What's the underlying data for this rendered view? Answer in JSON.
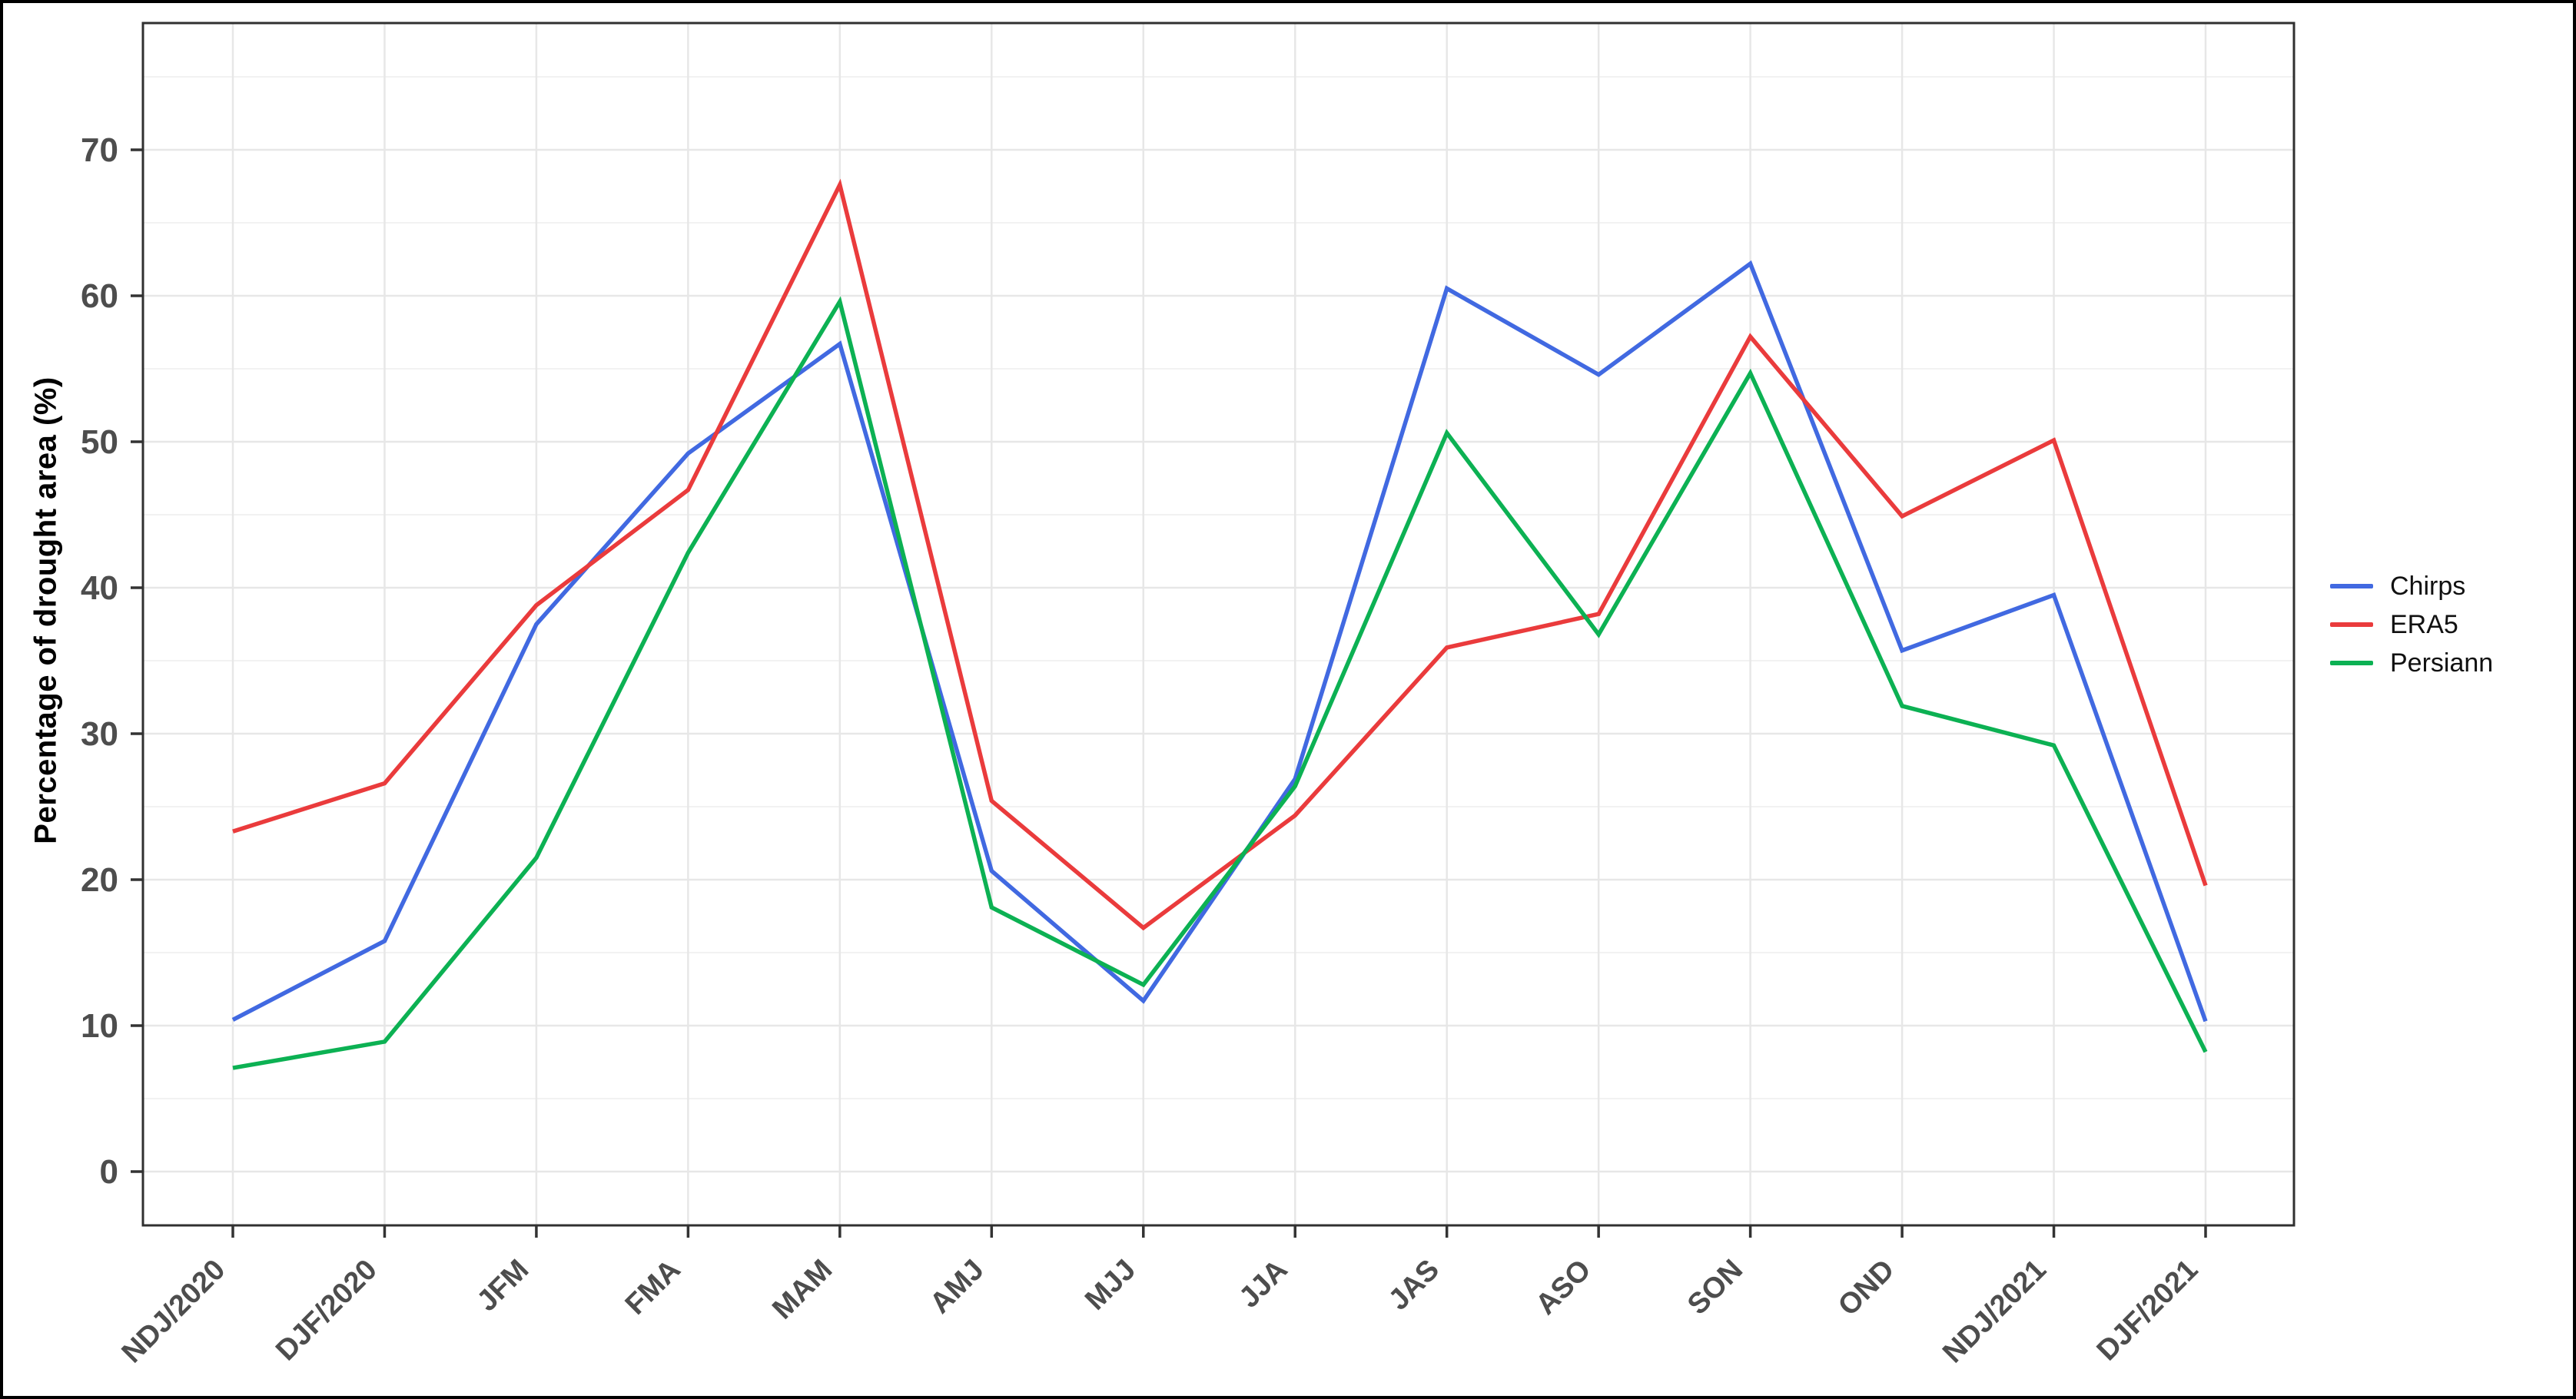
{
  "chart_data": {
    "type": "line",
    "title": "",
    "xlabel": "",
    "ylabel": "Percentage of drought area (%)",
    "categories": [
      "NDJ/2020",
      "DJF/2020",
      "JFM",
      "FMA",
      "MAM",
      "AMJ",
      "MJJ",
      "JJA",
      "JAS",
      "ASO",
      "SON",
      "OND",
      "NDJ/2021",
      "DJF/2021"
    ],
    "series": [
      {
        "name": "Chirps",
        "color": "#4169E1",
        "values": [
          10.4,
          15.8,
          37.5,
          49.2,
          56.7,
          20.6,
          11.7,
          26.9,
          60.5,
          54.6,
          62.2,
          35.7,
          39.5,
          10.3
        ]
      },
      {
        "name": "ERA5",
        "color": "#EA3B3C",
        "values": [
          23.3,
          26.6,
          38.8,
          46.7,
          67.6,
          25.4,
          16.7,
          24.4,
          35.9,
          38.2,
          57.2,
          44.9,
          50.1,
          19.6
        ]
      },
      {
        "name": "Persiann",
        "color": "#0CB153",
        "values": [
          7.1,
          8.9,
          21.5,
          42.4,
          59.6,
          18.1,
          12.8,
          26.4,
          50.6,
          36.8,
          54.7,
          31.9,
          29.2,
          8.2
        ]
      }
    ],
    "y_major_ticks": [
      0,
      10,
      20,
      30,
      40,
      50,
      60,
      70
    ],
    "y_tick_labels": [
      "0",
      "10",
      "20",
      "30",
      "40",
      "50",
      "60",
      "70"
    ],
    "y_minor_step": 5,
    "ylim": [
      0,
      70
    ],
    "grid": "major+minor",
    "legend_position": "right",
    "colors": {
      "grid_major": "#E7E7E7",
      "grid_minor": "#F2F2F2",
      "panel_border": "#303030",
      "tick_mark": "#333333",
      "tick_label": "#4D4D4D",
      "axis_title": "#000000"
    }
  }
}
